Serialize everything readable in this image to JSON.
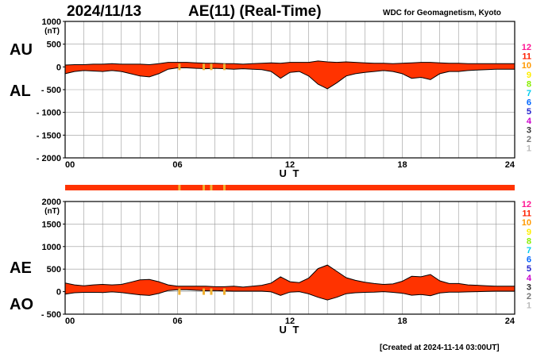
{
  "header": {
    "date": "2024/11/13",
    "title": "AE(11) (Real-Time)",
    "source": "WDC for Geomagnetism, Kyoto"
  },
  "footer": {
    "created": "[Created at 2024-11-14 03:00UT]"
  },
  "colors": {
    "fill": "#ff3300",
    "outline": "#000000",
    "grid": "#999999",
    "station_bar": "#ff3300",
    "station_gap": "#f0b030"
  },
  "station_scale": [
    {
      "label": "12",
      "color": "#ff1493"
    },
    {
      "label": "11",
      "color": "#ff2000"
    },
    {
      "label": "10",
      "color": "#ff9900"
    },
    {
      "label": "9",
      "color": "#ffee00"
    },
    {
      "label": "8",
      "color": "#88ee00"
    },
    {
      "label": "7",
      "color": "#00ccee"
    },
    {
      "label": "6",
      "color": "#0066ff"
    },
    {
      "label": "5",
      "color": "#2222cc"
    },
    {
      "label": "4",
      "color": "#cc00cc"
    },
    {
      "label": "3",
      "color": "#333333"
    },
    {
      "label": "2",
      "color": "#777777"
    },
    {
      "label": "1",
      "color": "#bbbbbb"
    }
  ],
  "station_gaps_hours": [
    6.1,
    7.4,
    7.8,
    8.5
  ],
  "chart_data": [
    {
      "type": "area",
      "panel": "AU/AL",
      "upper_label": "AU",
      "lower_label": "AL",
      "unit": "(nT)",
      "xlabel": "U T",
      "xlim": [
        0,
        24
      ],
      "xticks": [
        0,
        6,
        12,
        18,
        24
      ],
      "xtick_labels": [
        "00",
        "06",
        "12",
        "18",
        "24"
      ],
      "ylim": [
        -2000,
        1000
      ],
      "yticks": [
        1000,
        500,
        0,
        -500,
        -1000,
        -1500,
        -2000
      ],
      "ytick_labels": [
        "1000",
        "500",
        "0",
        "- 500",
        "- 1000",
        "- 1500",
        "- 2000"
      ],
      "grid": true,
      "series": [
        {
          "name": "AU",
          "x": [
            0,
            0.5,
            1,
            1.5,
            2,
            2.5,
            3,
            3.5,
            4,
            4.5,
            5,
            5.5,
            6,
            6.5,
            7,
            7.5,
            8,
            8.5,
            9,
            9.5,
            10,
            10.5,
            11,
            11.5,
            12,
            12.5,
            13,
            13.5,
            14,
            14.5,
            15,
            15.5,
            16,
            16.5,
            17,
            17.5,
            18,
            18.5,
            19,
            19.5,
            20,
            20.5,
            21,
            21.5,
            22,
            22.5,
            23,
            23.5,
            24
          ],
          "values": [
            40,
            50,
            50,
            60,
            60,
            70,
            60,
            60,
            60,
            50,
            70,
            100,
            100,
            100,
            90,
            80,
            80,
            70,
            70,
            60,
            70,
            80,
            90,
            80,
            100,
            100,
            100,
            130,
            110,
            100,
            110,
            100,
            90,
            80,
            80,
            70,
            80,
            90,
            100,
            100,
            90,
            80,
            80,
            70,
            70,
            70,
            70,
            70,
            70
          ]
        },
        {
          "name": "AL",
          "x": [
            0,
            0.5,
            1,
            1.5,
            2,
            2.5,
            3,
            3.5,
            4,
            4.5,
            5,
            5.5,
            6,
            6.5,
            7,
            7.5,
            8,
            8.5,
            9,
            9.5,
            10,
            10.5,
            11,
            11.5,
            12,
            12.5,
            13,
            13.5,
            14,
            14.5,
            15,
            15.5,
            16,
            16.5,
            17,
            17.5,
            18,
            18.5,
            19,
            19.5,
            20,
            20.5,
            21,
            21.5,
            22,
            22.5,
            23,
            23.5,
            24
          ],
          "values": [
            -150,
            -100,
            -80,
            -90,
            -100,
            -80,
            -100,
            -150,
            -200,
            -220,
            -150,
            -50,
            -20,
            -20,
            -30,
            -40,
            -30,
            -40,
            -50,
            -40,
            -50,
            -60,
            -100,
            -250,
            -120,
            -100,
            -200,
            -380,
            -480,
            -350,
            -200,
            -150,
            -120,
            -100,
            -80,
            -100,
            -150,
            -250,
            -230,
            -280,
            -150,
            -100,
            -100,
            -80,
            -70,
            -60,
            -50,
            -50,
            -50
          ]
        }
      ]
    },
    {
      "type": "area",
      "panel": "AE/AO",
      "upper_label": "AE",
      "lower_label": "AO",
      "unit": "(nT)",
      "xlabel": "U T",
      "xlim": [
        0,
        24
      ],
      "xticks": [
        0,
        6,
        12,
        18,
        24
      ],
      "xtick_labels": [
        "00",
        "06",
        "12",
        "18",
        "24"
      ],
      "ylim": [
        -500,
        2000
      ],
      "yticks": [
        2000,
        1500,
        1000,
        500,
        0,
        -500
      ],
      "ytick_labels": [
        "2000",
        "1500",
        "1000",
        "500",
        "0",
        "- 500"
      ],
      "grid": true,
      "series": [
        {
          "name": "AE",
          "x": [
            0,
            0.5,
            1,
            1.5,
            2,
            2.5,
            3,
            3.5,
            4,
            4.5,
            5,
            5.5,
            6,
            6.5,
            7,
            7.5,
            8,
            8.5,
            9,
            9.5,
            10,
            10.5,
            11,
            11.5,
            12,
            12.5,
            13,
            13.5,
            14,
            14.5,
            15,
            15.5,
            16,
            16.5,
            17,
            17.5,
            18,
            18.5,
            19,
            19.5,
            20,
            20.5,
            21,
            21.5,
            22,
            22.5,
            23,
            23.5,
            24
          ],
          "values": [
            190,
            150,
            130,
            150,
            160,
            150,
            160,
            210,
            260,
            270,
            220,
            150,
            120,
            120,
            120,
            120,
            110,
            110,
            120,
            100,
            120,
            140,
            190,
            330,
            220,
            200,
            300,
            510,
            590,
            450,
            310,
            250,
            210,
            180,
            160,
            170,
            230,
            340,
            330,
            380,
            240,
            180,
            180,
            150,
            140,
            130,
            120,
            120,
            120
          ]
        },
        {
          "name": "AO",
          "x": [
            0,
            0.5,
            1,
            1.5,
            2,
            2.5,
            3,
            3.5,
            4,
            4.5,
            5,
            5.5,
            6,
            6.5,
            7,
            7.5,
            8,
            8.5,
            9,
            9.5,
            10,
            10.5,
            11,
            11.5,
            12,
            12.5,
            13,
            13.5,
            14,
            14.5,
            15,
            15.5,
            16,
            16.5,
            17,
            17.5,
            18,
            18.5,
            19,
            19.5,
            20,
            20.5,
            21,
            21.5,
            22,
            22.5,
            23,
            23.5,
            24
          ],
          "values": [
            -55,
            -25,
            -15,
            -15,
            -20,
            -5,
            -20,
            -45,
            -70,
            -85,
            -40,
            25,
            40,
            40,
            30,
            20,
            25,
            15,
            10,
            10,
            10,
            10,
            -5,
            -85,
            -10,
            0,
            -50,
            -125,
            -185,
            -125,
            -45,
            -25,
            -15,
            -10,
            0,
            -15,
            -35,
            -80,
            -65,
            -90,
            -30,
            -10,
            -10,
            -5,
            0,
            5,
            10,
            10,
            10
          ]
        }
      ]
    }
  ]
}
